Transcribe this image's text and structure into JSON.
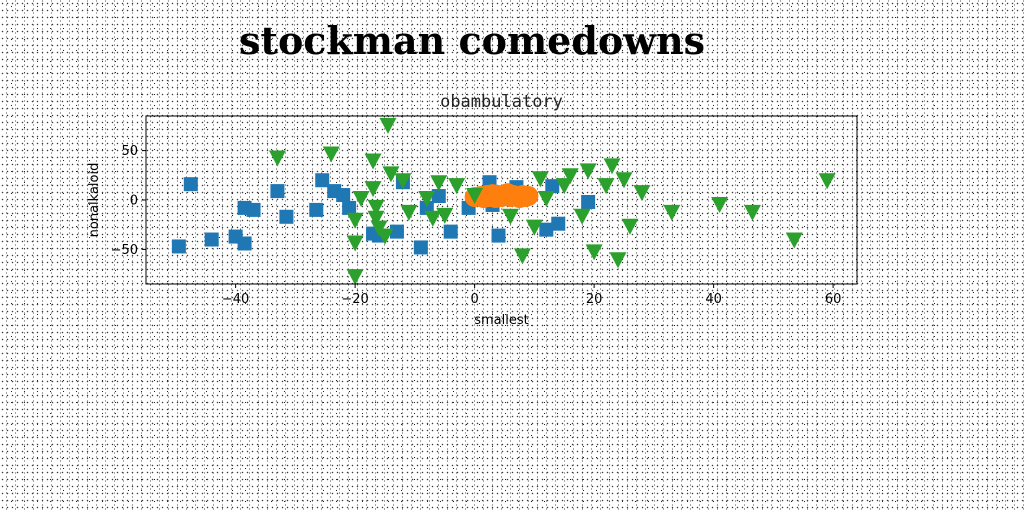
{
  "figure": {
    "title": "stockman comedowns"
  },
  "chart_data": {
    "type": "scatter",
    "title": "obambulatory",
    "xlabel": "smallest",
    "ylabel": "nonalkaloid",
    "xlim": [
      -55,
      64
    ],
    "ylim": [
      -85,
      85
    ],
    "xticks": [
      -40,
      -20,
      0,
      20,
      40,
      60
    ],
    "yticks": [
      -50,
      0,
      50
    ],
    "grid": false,
    "legend": null,
    "series": [
      {
        "marker": "square",
        "color": "#1f77b4",
        "points": [
          [
            -49.5,
            -47
          ],
          [
            -47.5,
            16
          ],
          [
            -44,
            -40
          ],
          [
            -40,
            -37
          ],
          [
            -38.5,
            -8
          ],
          [
            -38.5,
            -44
          ],
          [
            -37,
            -10
          ],
          [
            -33,
            9
          ],
          [
            -31.5,
            -17
          ],
          [
            -26.5,
            -10
          ],
          [
            -25.5,
            20
          ],
          [
            -23.5,
            9
          ],
          [
            -22,
            5
          ],
          [
            -21,
            -8
          ],
          [
            -17,
            -34
          ],
          [
            -16,
            -36
          ],
          [
            -13,
            -32
          ],
          [
            -12,
            18
          ],
          [
            -9,
            -48
          ],
          [
            -8,
            -8
          ],
          [
            -6,
            4
          ],
          [
            -4,
            -32
          ],
          [
            -1,
            -8
          ],
          [
            2.5,
            18
          ],
          [
            3,
            -5
          ],
          [
            4,
            -36
          ],
          [
            7,
            13
          ],
          [
            12,
            -30
          ],
          [
            13,
            14
          ],
          [
            14,
            -24
          ],
          [
            19,
            -2
          ]
        ]
      },
      {
        "marker": "circle",
        "color": "#ff7f0e",
        "points": [
          [
            0,
            3
          ],
          [
            1,
            4
          ],
          [
            1.5,
            2
          ],
          [
            2,
            5
          ],
          [
            2.5,
            3
          ],
          [
            3,
            6
          ],
          [
            3.5,
            2
          ],
          [
            4,
            5
          ],
          [
            4.5,
            3
          ],
          [
            5,
            4
          ],
          [
            5.5,
            7
          ],
          [
            6,
            3
          ],
          [
            6.5,
            5
          ],
          [
            7,
            4
          ],
          [
            7.5,
            2
          ],
          [
            8,
            5
          ],
          [
            8.5,
            3
          ],
          [
            9,
            4
          ]
        ]
      },
      {
        "marker": "triangle-down",
        "color": "#2ca02c",
        "points": [
          [
            -33,
            43
          ],
          [
            -24,
            47
          ],
          [
            -20,
            -20
          ],
          [
            -20,
            -43
          ],
          [
            -20,
            -77
          ],
          [
            -19,
            2
          ],
          [
            -17,
            40
          ],
          [
            -17,
            12
          ],
          [
            -16.5,
            -7
          ],
          [
            -16.5,
            -18
          ],
          [
            -16,
            -28
          ],
          [
            -15,
            -36
          ],
          [
            -14.5,
            76
          ],
          [
            -14,
            27
          ],
          [
            -12,
            20
          ],
          [
            -11,
            -12
          ],
          [
            -8,
            2
          ],
          [
            -7,
            -18
          ],
          [
            -6,
            18
          ],
          [
            -5,
            -15
          ],
          [
            -3,
            15
          ],
          [
            0,
            5
          ],
          [
            6,
            -16
          ],
          [
            8,
            -56
          ],
          [
            10,
            -27
          ],
          [
            11,
            22
          ],
          [
            12,
            2
          ],
          [
            15,
            15
          ],
          [
            16,
            25
          ],
          [
            18,
            -16
          ],
          [
            19,
            30
          ],
          [
            20,
            -52
          ],
          [
            22,
            15
          ],
          [
            23,
            35
          ],
          [
            24,
            -60
          ],
          [
            25,
            21
          ],
          [
            26,
            -26
          ],
          [
            28,
            8
          ],
          [
            33,
            -12
          ],
          [
            41,
            -4
          ],
          [
            46.5,
            -12
          ],
          [
            53.5,
            -40
          ],
          [
            59,
            20
          ]
        ]
      }
    ]
  }
}
